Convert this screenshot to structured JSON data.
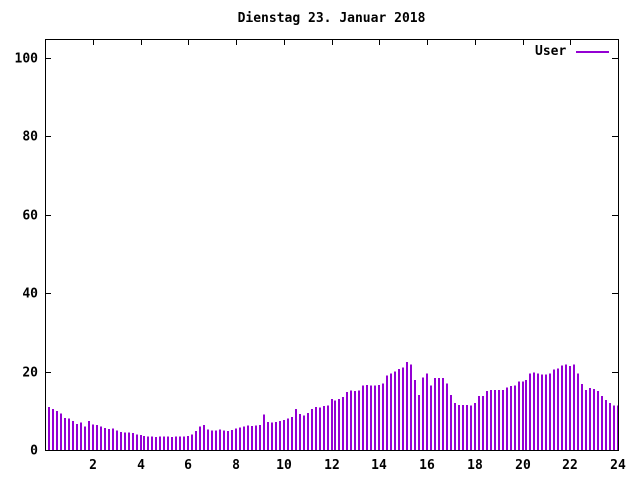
{
  "title": "Dienstag 23. Januar 2018",
  "legend": {
    "label": "User"
  },
  "colors": {
    "series": "#9400d3",
    "axis": "#000000",
    "background": "#ffffff"
  },
  "chart_data": {
    "type": "bar",
    "style": "impulses",
    "title": "Dienstag 23. Januar 2018",
    "xlabel": "",
    "ylabel": "",
    "xlim": [
      0,
      24
    ],
    "ylim": [
      0,
      104.8
    ],
    "x_ticks": [
      2,
      4,
      6,
      8,
      10,
      12,
      14,
      16,
      18,
      20,
      22,
      24
    ],
    "y_ticks": [
      0,
      20,
      40,
      60,
      80,
      100
    ],
    "grid": false,
    "legend_position": "top-right-inside",
    "x_unit": "hour of day",
    "sample_interval_hours": 0.166667,
    "series": [
      {
        "name": "User",
        "color": "#9400d3",
        "values": [
          11.0,
          10.5,
          10.0,
          9.3,
          8.2,
          8.0,
          7.4,
          6.6,
          7.0,
          6.0,
          7.4,
          6.5,
          6.4,
          6.0,
          5.6,
          5.4,
          5.5,
          5.0,
          4.6,
          4.5,
          4.5,
          4.3,
          4.0,
          3.8,
          3.6,
          3.4,
          3.4,
          3.3,
          3.4,
          3.4,
          3.4,
          3.3,
          3.4,
          3.4,
          3.4,
          3.6,
          4.0,
          4.8,
          6.0,
          6.4,
          5.2,
          5.0,
          5.0,
          5.2,
          5.0,
          4.9,
          5.1,
          5.5,
          5.8,
          6.0,
          6.2,
          6.1,
          6.3,
          6.4,
          9.0,
          7.2,
          7.0,
          7.2,
          7.4,
          7.6,
          8.0,
          8.4,
          10.5,
          9.2,
          8.8,
          9.4,
          10.4,
          11.0,
          10.8,
          11.2,
          11.4,
          13.0,
          12.6,
          13.0,
          13.5,
          14.8,
          15.2,
          15.0,
          15.2,
          16.5,
          16.6,
          16.5,
          16.4,
          16.6,
          17.0,
          19.0,
          19.5,
          20.0,
          20.6,
          21.0,
          22.5,
          21.8,
          17.8,
          14.0,
          18.5,
          19.5,
          16.5,
          18.3,
          18.3,
          18.3,
          17.0,
          14.0,
          12.0,
          11.5,
          11.5,
          11.5,
          11.3,
          12.0,
          13.8,
          13.8,
          15.0,
          15.3,
          15.3,
          15.3,
          15.3,
          16.0,
          16.3,
          16.5,
          17.5,
          17.5,
          17.8,
          19.5,
          19.8,
          19.5,
          19.3,
          19.3,
          19.5,
          20.5,
          20.8,
          21.5,
          21.8,
          21.4,
          21.8,
          19.5,
          16.8,
          15.3,
          15.8,
          15.5,
          15.0,
          13.8,
          12.8,
          12.0,
          11.4,
          11.3
        ]
      }
    ]
  }
}
